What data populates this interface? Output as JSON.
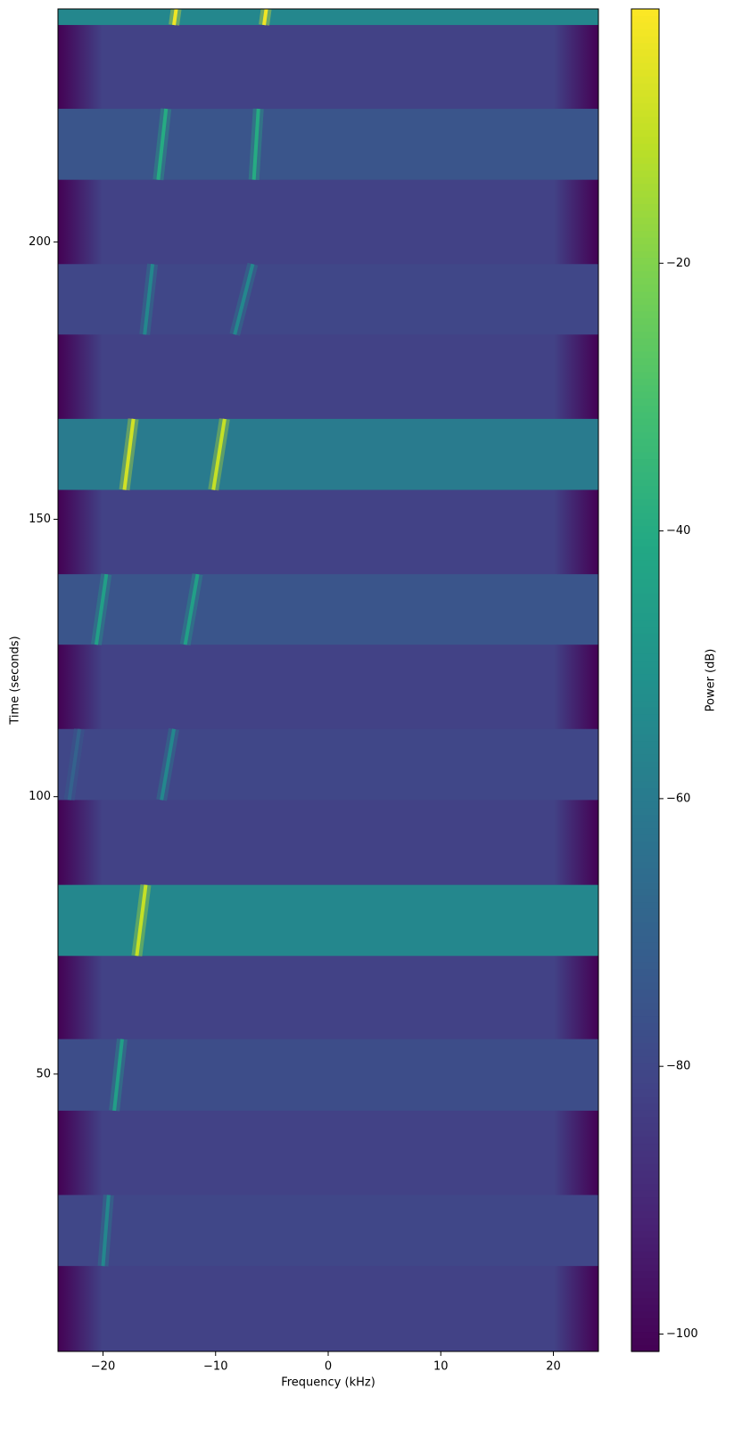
{
  "chart_data": {
    "type": "heatmap",
    "xlabel": "Frequency (kHz)",
    "ylabel": "Time (seconds)",
    "colorbar_label": "Power (dB)",
    "xlim": [
      -24,
      24
    ],
    "ylim": [
      0,
      242
    ],
    "xticks": [
      {
        "value": -20,
        "label": "−20"
      },
      {
        "value": -10,
        "label": "−10"
      },
      0,
      10,
      20
    ],
    "yticks": [
      50,
      100,
      150,
      200
    ],
    "clim": [
      -101.3,
      -1
    ],
    "cticks": [
      {
        "value": -20,
        "label": "−20"
      },
      {
        "value": -40,
        "label": "−40"
      },
      {
        "value": -60,
        "label": "−60"
      },
      {
        "value": -80,
        "label": "−80"
      },
      {
        "value": -100,
        "label": "−100"
      }
    ],
    "background": -82,
    "bursts": [
      {
        "t": [
          239.1,
          242
        ],
        "power": -55,
        "tones": [
          {
            "f": [
              -13.7,
              -13.5
            ],
            "power": -3
          },
          {
            "f": [
              -5.7,
              -5.5
            ],
            "power": -3
          }
        ]
      },
      {
        "t": [
          211.2,
          224
        ],
        "power": -75,
        "tones": [
          {
            "f": [
              -15.1,
              -14.4
            ],
            "power": -40
          },
          {
            "f": [
              -6.6,
              -6.2
            ],
            "power": -40
          }
        ]
      },
      {
        "t": [
          183.3,
          196
        ],
        "power": -80,
        "tones": [
          {
            "f": [
              -16.3,
              -15.6
            ],
            "power": -55
          },
          {
            "f": [
              -8.3,
              -6.7
            ],
            "power": -55
          }
        ]
      },
      {
        "t": [
          155.3,
          168.1
        ],
        "power": -60,
        "tones": [
          {
            "f": [
              -18.1,
              -17.3
            ],
            "power": -8
          },
          {
            "f": [
              -10.2,
              -9.2
            ],
            "power": -10
          }
        ]
      },
      {
        "t": [
          127.4,
          140.1
        ],
        "power": -75,
        "tones": [
          {
            "f": [
              -20.6,
              -19.7
            ],
            "power": -45
          },
          {
            "f": [
              -12.7,
              -11.6
            ],
            "power": -45
          }
        ]
      },
      {
        "t": [
          99.4,
          112.2
        ],
        "power": -80,
        "tones": [
          {
            "f": [
              -23.0,
              -22.1
            ],
            "power": -70
          },
          {
            "f": [
              -14.8,
              -13.7
            ],
            "power": -55
          }
        ]
      },
      {
        "t": [
          71.3,
          84.1
        ],
        "power": -55,
        "tones": [
          {
            "f": [
              -17.0,
              -16.2
            ],
            "power": -10
          }
        ]
      },
      {
        "t": [
          43.4,
          56.3
        ],
        "power": -78,
        "tones": [
          {
            "f": [
              -19.0,
              -18.3
            ],
            "power": -45
          }
        ]
      },
      {
        "t": [
          15.4,
          28.2
        ],
        "power": -80,
        "tones": [
          {
            "f": [
              -20.0,
              -19.5
            ],
            "power": -55
          }
        ]
      }
    ]
  }
}
